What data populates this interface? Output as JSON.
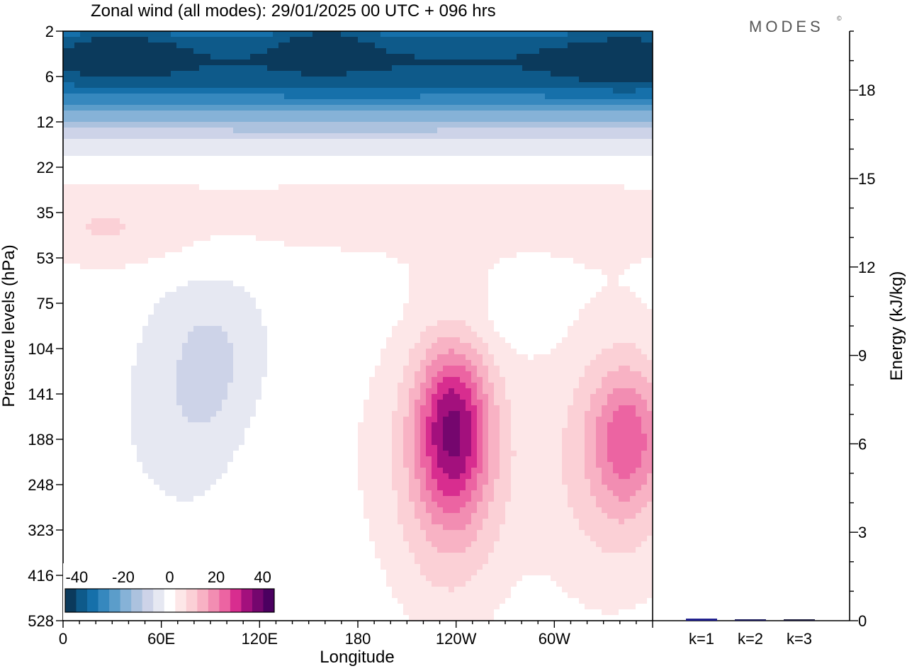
{
  "chart_data": [
    {
      "type": "heatmap",
      "title": "Zonal wind (all modes):  29/01/2025  00 UTC  + 096 hrs",
      "brand": "MODES",
      "brand_mark": "©",
      "xlabel": "Longitude",
      "ylabel": "Pressure levels (hPa)",
      "x_ticks": [
        {
          "label": "0",
          "lon": 0
        },
        {
          "label": "60E",
          "lon": 60
        },
        {
          "label": "120E",
          "lon": 120
        },
        {
          "label": "180",
          "lon": 180
        },
        {
          "label": "120W",
          "lon": 240
        },
        {
          "label": "60W",
          "lon": 300
        }
      ],
      "x_range": [
        0,
        360
      ],
      "y_levels": [
        "2",
        "6",
        "12",
        "22",
        "35",
        "53",
        "75",
        "104",
        "141",
        "188",
        "248",
        "323",
        "416",
        "528"
      ],
      "colorbar": {
        "tick_labels": [
          "-40",
          "-20",
          "0",
          "20",
          "40"
        ],
        "tick_values": [
          -40,
          -20,
          0,
          20,
          40
        ],
        "range": [
          -45,
          45
        ],
        "step": 5,
        "colors": [
          "#0b3a5c",
          "#0e5a8a",
          "#1670aa",
          "#3688be",
          "#5b9dca",
          "#86b2d7",
          "#acc2de",
          "#cdd3e8",
          "#e6e8f2",
          "#ffffff",
          "#fde7e8",
          "#fbd0d6",
          "#f8b2c4",
          "#f28db2",
          "#ec64a2",
          "#d82d8f",
          "#a3107d",
          "#75066e",
          "#4b0060"
        ]
      },
      "field_description_bands_by_level": [
        {
          "level": "2",
          "wind": -32
        },
        {
          "level": "6",
          "wind": -27
        },
        {
          "level": "12",
          "wind": -15
        },
        {
          "level": "22",
          "wind": 1
        },
        {
          "level": "35",
          "wind": 5
        },
        {
          "level": "53",
          "wind": 3
        },
        {
          "level": "75",
          "wind": -2
        },
        {
          "level": "104",
          "wind": 2
        },
        {
          "level": "141",
          "wind": 4
        },
        {
          "level": "188",
          "wind": 4
        },
        {
          "level": "248",
          "wind": 3
        },
        {
          "level": "323",
          "wind": 2
        },
        {
          "level": "416",
          "wind": 1
        },
        {
          "level": "528",
          "wind": 0
        }
      ]
    },
    {
      "type": "bar",
      "ylabel": "Energy (kJ/kg)",
      "ylim": [
        0,
        20
      ],
      "y_ticks": [
        0,
        3,
        6,
        9,
        12,
        15,
        18
      ],
      "categories": [
        "k=1",
        "k=2",
        "k=3"
      ],
      "values": [
        0.07,
        0.04,
        0.01
      ],
      "bar_colors": [
        "#1c1c8c",
        "#1c1c5c",
        "#1c1c3c"
      ]
    }
  ]
}
